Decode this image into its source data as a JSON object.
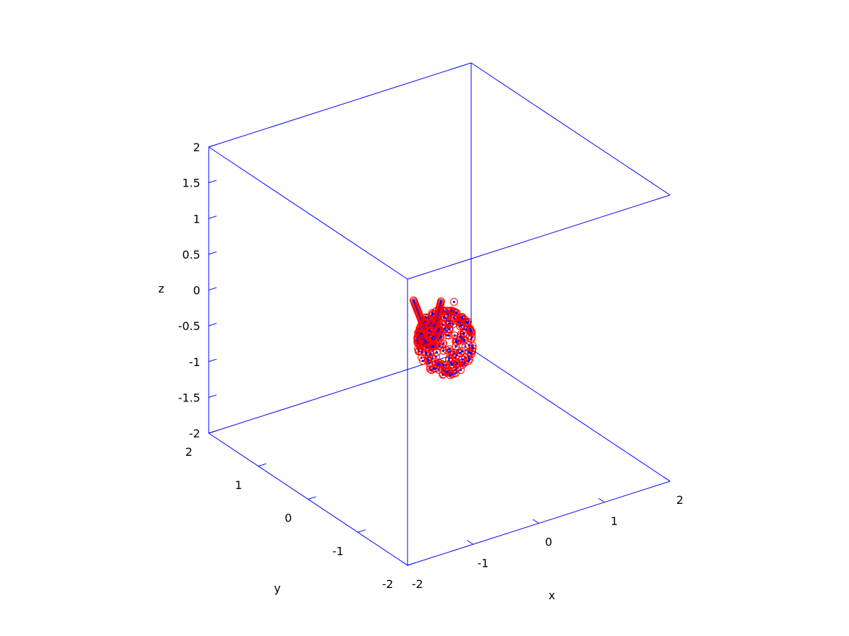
{
  "chart_data": {
    "type": "scatter",
    "projection": "3d",
    "title": "",
    "xlabel": "x",
    "ylabel": "y",
    "zlabel": "z",
    "xlim": [
      -2,
      2
    ],
    "ylim": [
      -2,
      2
    ],
    "zlim": [
      -2,
      2
    ],
    "xticks": [
      "-2",
      "-1",
      "0",
      "1",
      "2"
    ],
    "yticks": [
      "-2",
      "-1",
      "0",
      "1",
      "2"
    ],
    "zticks": [
      "-2",
      "-1.5",
      "-1",
      "-0.5",
      "0",
      "0.5",
      "1",
      "1.5",
      "2"
    ],
    "grid": false,
    "box": true,
    "legend": "none",
    "colors": {
      "axes": "#0000ff",
      "marker_edge": "#ff0000",
      "marker_center": "#0000ff",
      "text": "#000000"
    },
    "series": [
      {
        "marker": "circle",
        "description_points": "approximate point cloud of the rendered shape (x, y, z in data units)",
        "points": [
          [
            0.05,
            -0.05,
            -0.05
          ],
          [
            0.2,
            0.1,
            -0.1
          ],
          [
            -0.1,
            0.15,
            -0.15
          ],
          [
            0.1,
            0.25,
            -0.3
          ],
          [
            0.25,
            -0.1,
            -0.35
          ],
          [
            -0.05,
            0.3,
            -0.4
          ],
          [
            0.3,
            0.05,
            -0.5
          ],
          [
            0.0,
            0.0,
            -0.45
          ],
          [
            0.15,
            0.35,
            -0.55
          ],
          [
            -0.15,
            -0.05,
            -0.55
          ],
          [
            0.35,
            0.25,
            -0.35
          ],
          [
            0.4,
            -0.05,
            -0.2
          ],
          [
            0.2,
            -0.2,
            -0.6
          ],
          [
            -0.05,
            0.15,
            -0.7
          ],
          [
            0.1,
            0.4,
            -0.75
          ],
          [
            0.3,
            0.2,
            -0.8
          ],
          [
            0.05,
            -0.15,
            -0.8
          ],
          [
            0.25,
            0.45,
            -0.6
          ],
          [
            0.45,
            0.3,
            -0.1
          ],
          [
            0.45,
            0.1,
            -0.45
          ]
        ]
      }
    ]
  }
}
